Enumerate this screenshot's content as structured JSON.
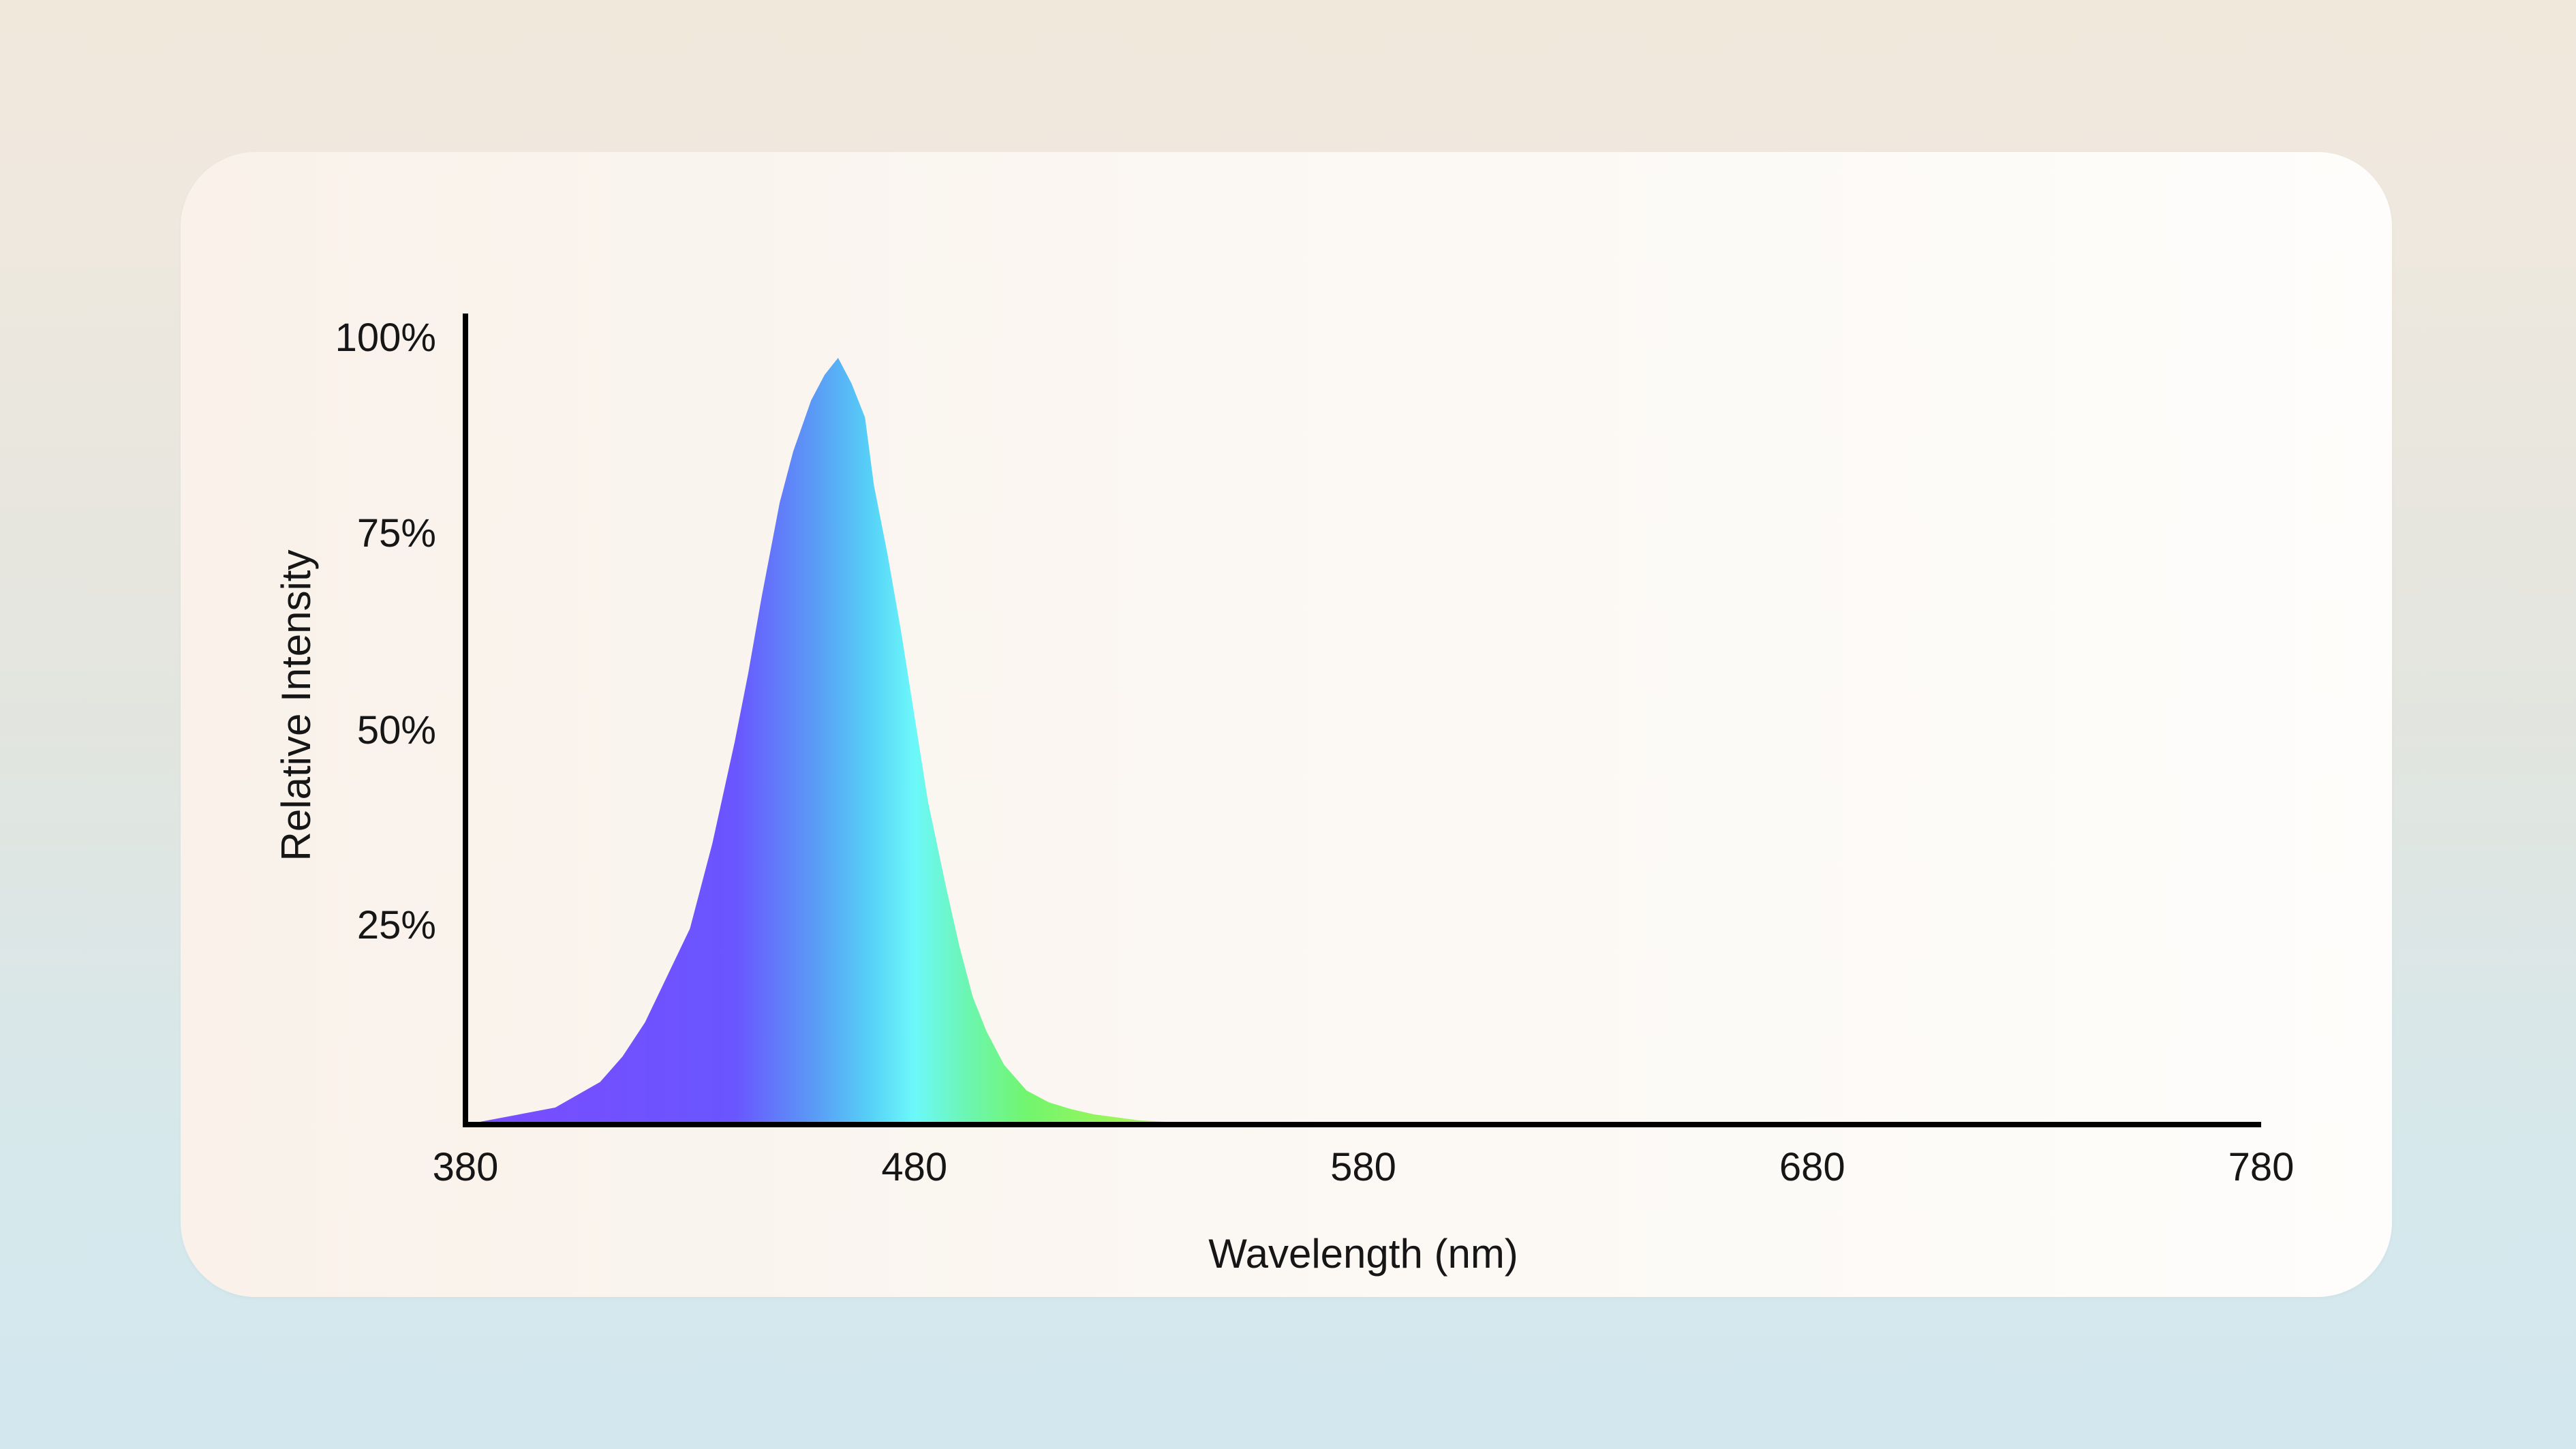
{
  "chart_data": {
    "type": "area",
    "title": "",
    "xlabel": "Wavelength (nm)",
    "ylabel": "Relative Intensity",
    "xlim": [
      380,
      780
    ],
    "ylim": [
      0,
      100
    ],
    "x_ticks": [
      "380",
      "480",
      "580",
      "680",
      "780"
    ],
    "x_tick_values": [
      380,
      480,
      580,
      680,
      780
    ],
    "y_ticks": [
      "25%",
      "50%",
      "75%",
      "100%"
    ],
    "y_tick_values": [
      25,
      50,
      75,
      100
    ],
    "grid": false,
    "legend": "none",
    "series": [
      {
        "x": [
          380,
          400,
          410,
          415,
          420,
          430,
          435,
          440,
          443,
          446,
          450,
          453,
          457,
          460,
          463,
          466,
          469,
          470,
          471,
          474,
          477,
          480,
          483,
          487,
          490,
          493,
          496,
          500,
          505,
          510,
          515,
          520,
          530,
          540,
          550,
          560,
          580,
          600,
          650,
          700,
          780
        ],
        "values": [
          0,
          2,
          5,
          8,
          12,
          23,
          33,
          45,
          53,
          62,
          73,
          79,
          85,
          88,
          90,
          87,
          83,
          79,
          75,
          67,
          58,
          48,
          38,
          28,
          21,
          15,
          11,
          7,
          4,
          2.6,
          1.8,
          1.2,
          0.5,
          0.2,
          0.1,
          0,
          0,
          0,
          0,
          0,
          0
        ]
      }
    ],
    "fill_gradient": [
      {
        "x": 380,
        "color": "#7a4cff"
      },
      {
        "x": 440,
        "color": "#6a55ff"
      },
      {
        "x": 458,
        "color": "#5a9cf5"
      },
      {
        "x": 470,
        "color": "#56d0f7"
      },
      {
        "x": 480,
        "color": "#6cf8fa"
      },
      {
        "x": 492,
        "color": "#6cf6b0"
      },
      {
        "x": 505,
        "color": "#72f56e"
      },
      {
        "x": 525,
        "color": "#9cf55a"
      },
      {
        "x": 560,
        "color": "#c7f2a0"
      }
    ],
    "axis_color": "#000000"
  }
}
